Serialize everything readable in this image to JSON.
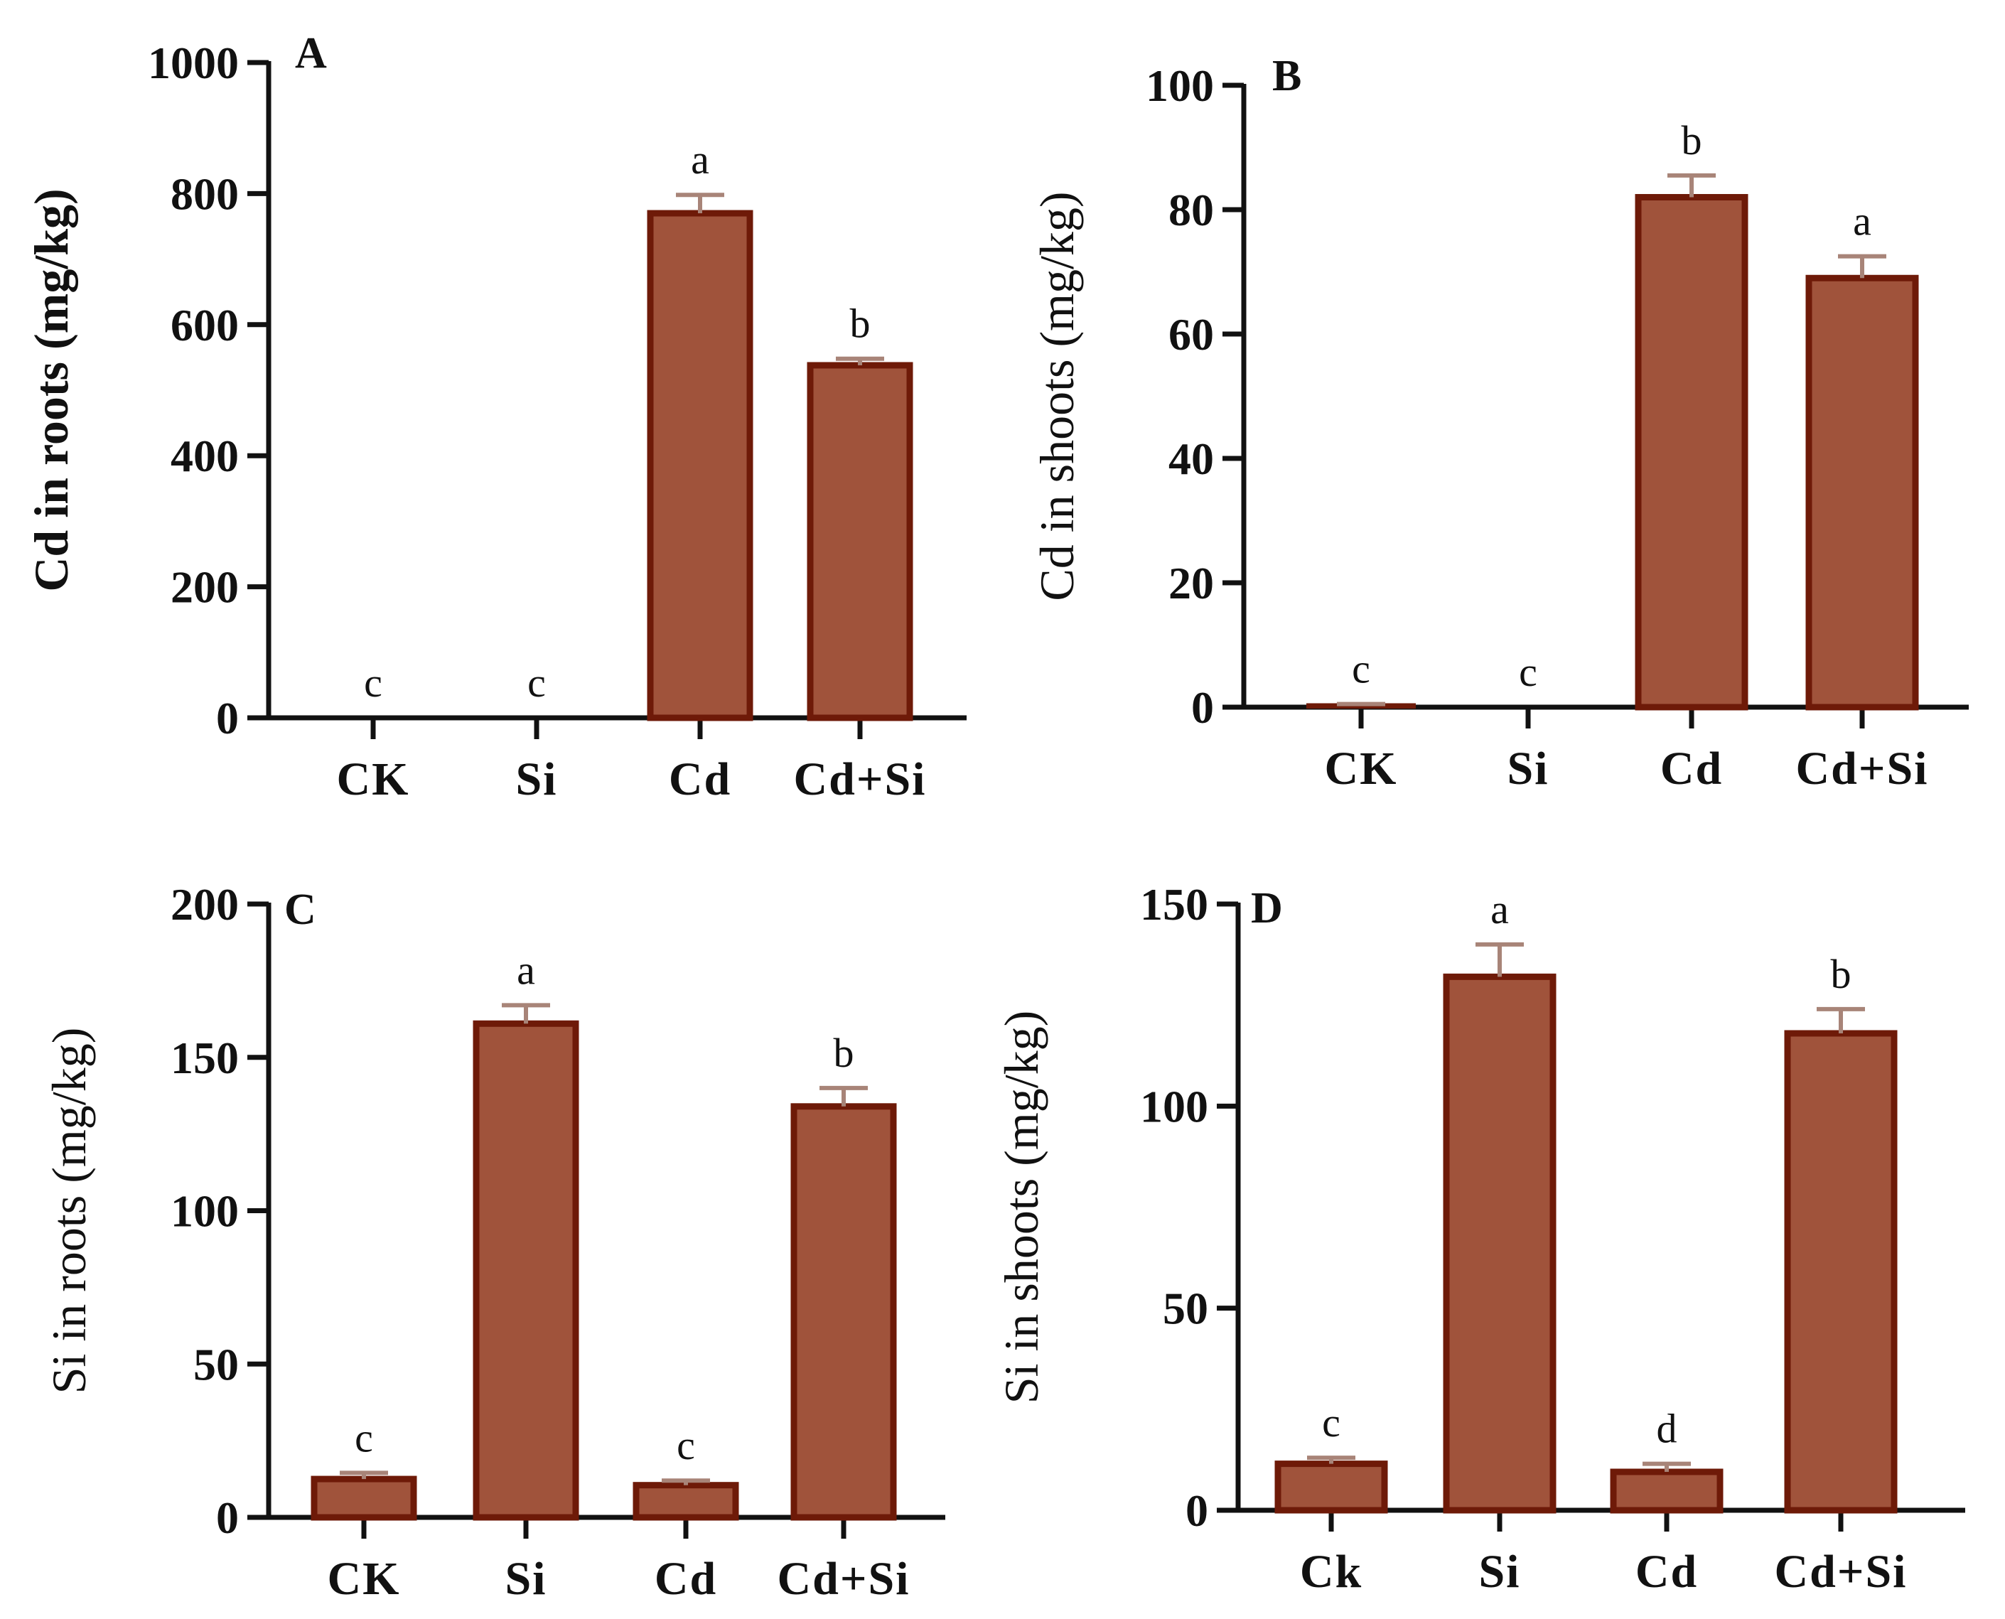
{
  "style": {
    "bar_fill": "#a0533b",
    "bar_stroke": "#6e1a08",
    "error_color": "#a88478",
    "axis_color": "#111111"
  },
  "chart_data": [
    {
      "panel": "A",
      "type": "bar",
      "ylabel": "Cd in roots (mg/kg)",
      "ylabel_bold": true,
      "ylim": [
        0,
        1000
      ],
      "yticks": [
        0,
        200,
        400,
        600,
        800,
        1000
      ],
      "categories": [
        "CK",
        "Si",
        "Cd",
        "Cd+Si"
      ],
      "values": [
        0,
        0,
        770,
        538
      ],
      "errors": [
        0,
        0,
        28,
        10
      ],
      "significance": [
        "c",
        "c",
        "a",
        "b"
      ]
    },
    {
      "panel": "B",
      "type": "bar",
      "ylabel": "Cd in shoots (mg/kg)",
      "ylabel_bold": false,
      "ylim": [
        0,
        100
      ],
      "yticks": [
        0,
        20,
        40,
        60,
        80,
        100
      ],
      "categories": [
        "CK",
        "Si",
        "Cd",
        "Cd+Si"
      ],
      "values": [
        0.4,
        0,
        82,
        69
      ],
      "errors": [
        0.1,
        0,
        3.5,
        3.5
      ],
      "significance": [
        "c",
        "c",
        "b",
        "a"
      ]
    },
    {
      "panel": "C",
      "type": "bar",
      "ylabel": "Si in roots (mg/kg)",
      "ylabel_bold": false,
      "ylim": [
        0,
        200
      ],
      "yticks": [
        0,
        50,
        100,
        150,
        200
      ],
      "categories": [
        "CK",
        "Si",
        "Cd",
        "Cd+Si"
      ],
      "values": [
        12.5,
        161,
        10.5,
        134
      ],
      "errors": [
        2,
        6,
        1.5,
        6
      ],
      "significance": [
        "c",
        "a",
        "c",
        "b"
      ]
    },
    {
      "panel": "D",
      "type": "bar",
      "ylabel": "Si in shoots (mg/kg)",
      "ylabel_bold": false,
      "ylim": [
        0,
        150
      ],
      "yticks": [
        0,
        50,
        100,
        150
      ],
      "categories": [
        "Ck",
        "Si",
        "Cd",
        "Cd+Si"
      ],
      "values": [
        11.5,
        132,
        9.5,
        118
      ],
      "errors": [
        1.5,
        8,
        2,
        6
      ],
      "significance": [
        "c",
        "a",
        "d",
        "b"
      ]
    }
  ]
}
